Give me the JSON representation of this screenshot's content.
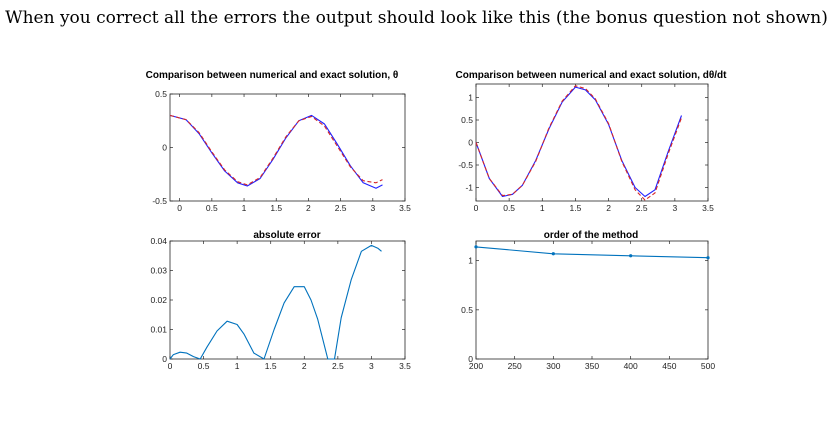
{
  "heading": "When you correct all the errors the output should look like this (the bonus question not shown)",
  "colors": {
    "numerical_line": "#2020ff",
    "exact_line": "#d62728",
    "error_line": "#0072bd",
    "axis": "#262626"
  },
  "chart_data": [
    {
      "type": "line",
      "title": "Comparison between numerical and exact solution, θ",
      "xlim": [
        -0.15,
        3.5
      ],
      "ylim": [
        -0.5,
        0.5
      ],
      "xticks": [
        "0",
        "0.5",
        "1",
        "1.5",
        "2",
        "2.5",
        "3",
        "3.5"
      ],
      "xtick_values": [
        0,
        0.5,
        1,
        1.5,
        2,
        2.5,
        3,
        3.5
      ],
      "yticks": [
        "-0.5",
        "0",
        "0.5"
      ],
      "ytick_values": [
        -0.5,
        0,
        0.5
      ],
      "grid": false,
      "series": [
        {
          "style": "solid",
          "x": [
            -0.15,
            0.1,
            0.3,
            0.5,
            0.7,
            0.9,
            1.05,
            1.25,
            1.45,
            1.65,
            1.85,
            2.05,
            2.25,
            2.45,
            2.65,
            2.85,
            3.05,
            3.15
          ],
          "y": [
            0.3,
            0.26,
            0.13,
            -0.05,
            -0.22,
            -0.33,
            -0.36,
            -0.29,
            -0.11,
            0.09,
            0.25,
            0.3,
            0.22,
            0.03,
            -0.17,
            -0.33,
            -0.38,
            -0.35
          ]
        },
        {
          "style": "dashed",
          "x": [
            -0.15,
            0.1,
            0.3,
            0.5,
            0.7,
            0.9,
            1.05,
            1.25,
            1.45,
            1.65,
            1.85,
            2.05,
            2.25,
            2.45,
            2.65,
            2.85,
            3.05,
            3.15
          ],
          "y": [
            0.3,
            0.26,
            0.14,
            -0.04,
            -0.21,
            -0.32,
            -0.35,
            -0.28,
            -0.1,
            0.1,
            0.25,
            0.29,
            0.2,
            0.01,
            -0.18,
            -0.31,
            -0.33,
            -0.3
          ]
        }
      ]
    },
    {
      "type": "line",
      "title": "Comparison between numerical and exact solution, dθ/dt",
      "xlim": [
        0,
        3.5
      ],
      "ylim": [
        -1.3,
        1.3
      ],
      "xticks": [
        "0",
        "0.5",
        "1",
        "1.5",
        "2",
        "2.5",
        "3",
        "3.5"
      ],
      "xtick_values": [
        0,
        0.5,
        1,
        1.5,
        2,
        2.5,
        3,
        3.5
      ],
      "yticks": [
        "-1",
        "-0.5",
        "0",
        "0.5",
        "1"
      ],
      "ytick_values": [
        -1,
        -0.5,
        0,
        0.5,
        1
      ],
      "grid": false,
      "series": [
        {
          "style": "solid",
          "x": [
            0,
            0.2,
            0.4,
            0.55,
            0.7,
            0.9,
            1.1,
            1.3,
            1.5,
            1.65,
            1.8,
            2.0,
            2.2,
            2.4,
            2.55,
            2.7,
            2.9,
            3.1
          ],
          "y": [
            0.0,
            -0.8,
            -1.2,
            -1.15,
            -0.95,
            -0.4,
            0.3,
            0.9,
            1.23,
            1.17,
            0.95,
            0.4,
            -0.4,
            -1.0,
            -1.2,
            -1.05,
            -0.2,
            0.6
          ]
        },
        {
          "style": "dashed",
          "x": [
            0,
            0.2,
            0.4,
            0.55,
            0.7,
            0.9,
            1.1,
            1.3,
            1.5,
            1.65,
            1.8,
            2.0,
            2.2,
            2.4,
            2.55,
            2.7,
            2.9,
            3.1
          ],
          "y": [
            0.0,
            -0.8,
            -1.18,
            -1.15,
            -0.95,
            -0.42,
            0.32,
            0.92,
            1.26,
            1.2,
            0.97,
            0.42,
            -0.42,
            -1.05,
            -1.28,
            -1.12,
            -0.25,
            0.55
          ]
        }
      ]
    },
    {
      "type": "line",
      "title": "absolute error",
      "xlim": [
        0,
        3.5
      ],
      "ylim": [
        0,
        0.04
      ],
      "xticks": [
        "0",
        "0.5",
        "1",
        "1.5",
        "2",
        "2.5",
        "3",
        "3.5"
      ],
      "xtick_values": [
        0,
        0.5,
        1,
        1.5,
        2,
        2.5,
        3,
        3.5
      ],
      "yticks": [
        "0",
        "0.01",
        "0.02",
        "0.03",
        "0.04"
      ],
      "ytick_values": [
        0,
        0.01,
        0.02,
        0.03,
        0.04
      ],
      "grid": false,
      "series": [
        {
          "style": "solid",
          "x": [
            0,
            0.05,
            0.15,
            0.25,
            0.35,
            0.45,
            0.55,
            0.7,
            0.85,
            1.0,
            1.1,
            1.25,
            1.4,
            1.55,
            1.7,
            1.85,
            2.0,
            2.1,
            2.2,
            2.35,
            2.45,
            2.55,
            2.7,
            2.85,
            3.0,
            3.1,
            3.15
          ],
          "y": [
            0,
            0.0015,
            0.0023,
            0.002,
            0.0008,
            0.0,
            0.004,
            0.0095,
            0.0128,
            0.0117,
            0.0085,
            0.002,
            0.0,
            0.01,
            0.019,
            0.0245,
            0.0245,
            0.02,
            0.0135,
            0.0,
            0.0,
            0.014,
            0.027,
            0.0365,
            0.0385,
            0.0375,
            0.0365
          ]
        }
      ]
    },
    {
      "type": "line",
      "title": "order of the method",
      "xlim": [
        200,
        500
      ],
      "ylim": [
        0,
        1.2
      ],
      "xticks": [
        "200",
        "250",
        "300",
        "350",
        "400",
        "450",
        "500"
      ],
      "xtick_values": [
        200,
        250,
        300,
        350,
        400,
        450,
        500
      ],
      "yticks": [
        "0",
        "0.5",
        "1"
      ],
      "ytick_values": [
        0,
        0.5,
        1
      ],
      "grid": false,
      "series": [
        {
          "style": "solid-markers",
          "x": [
            200,
            300,
            400,
            500
          ],
          "y": [
            1.14,
            1.07,
            1.05,
            1.03
          ]
        }
      ]
    }
  ]
}
